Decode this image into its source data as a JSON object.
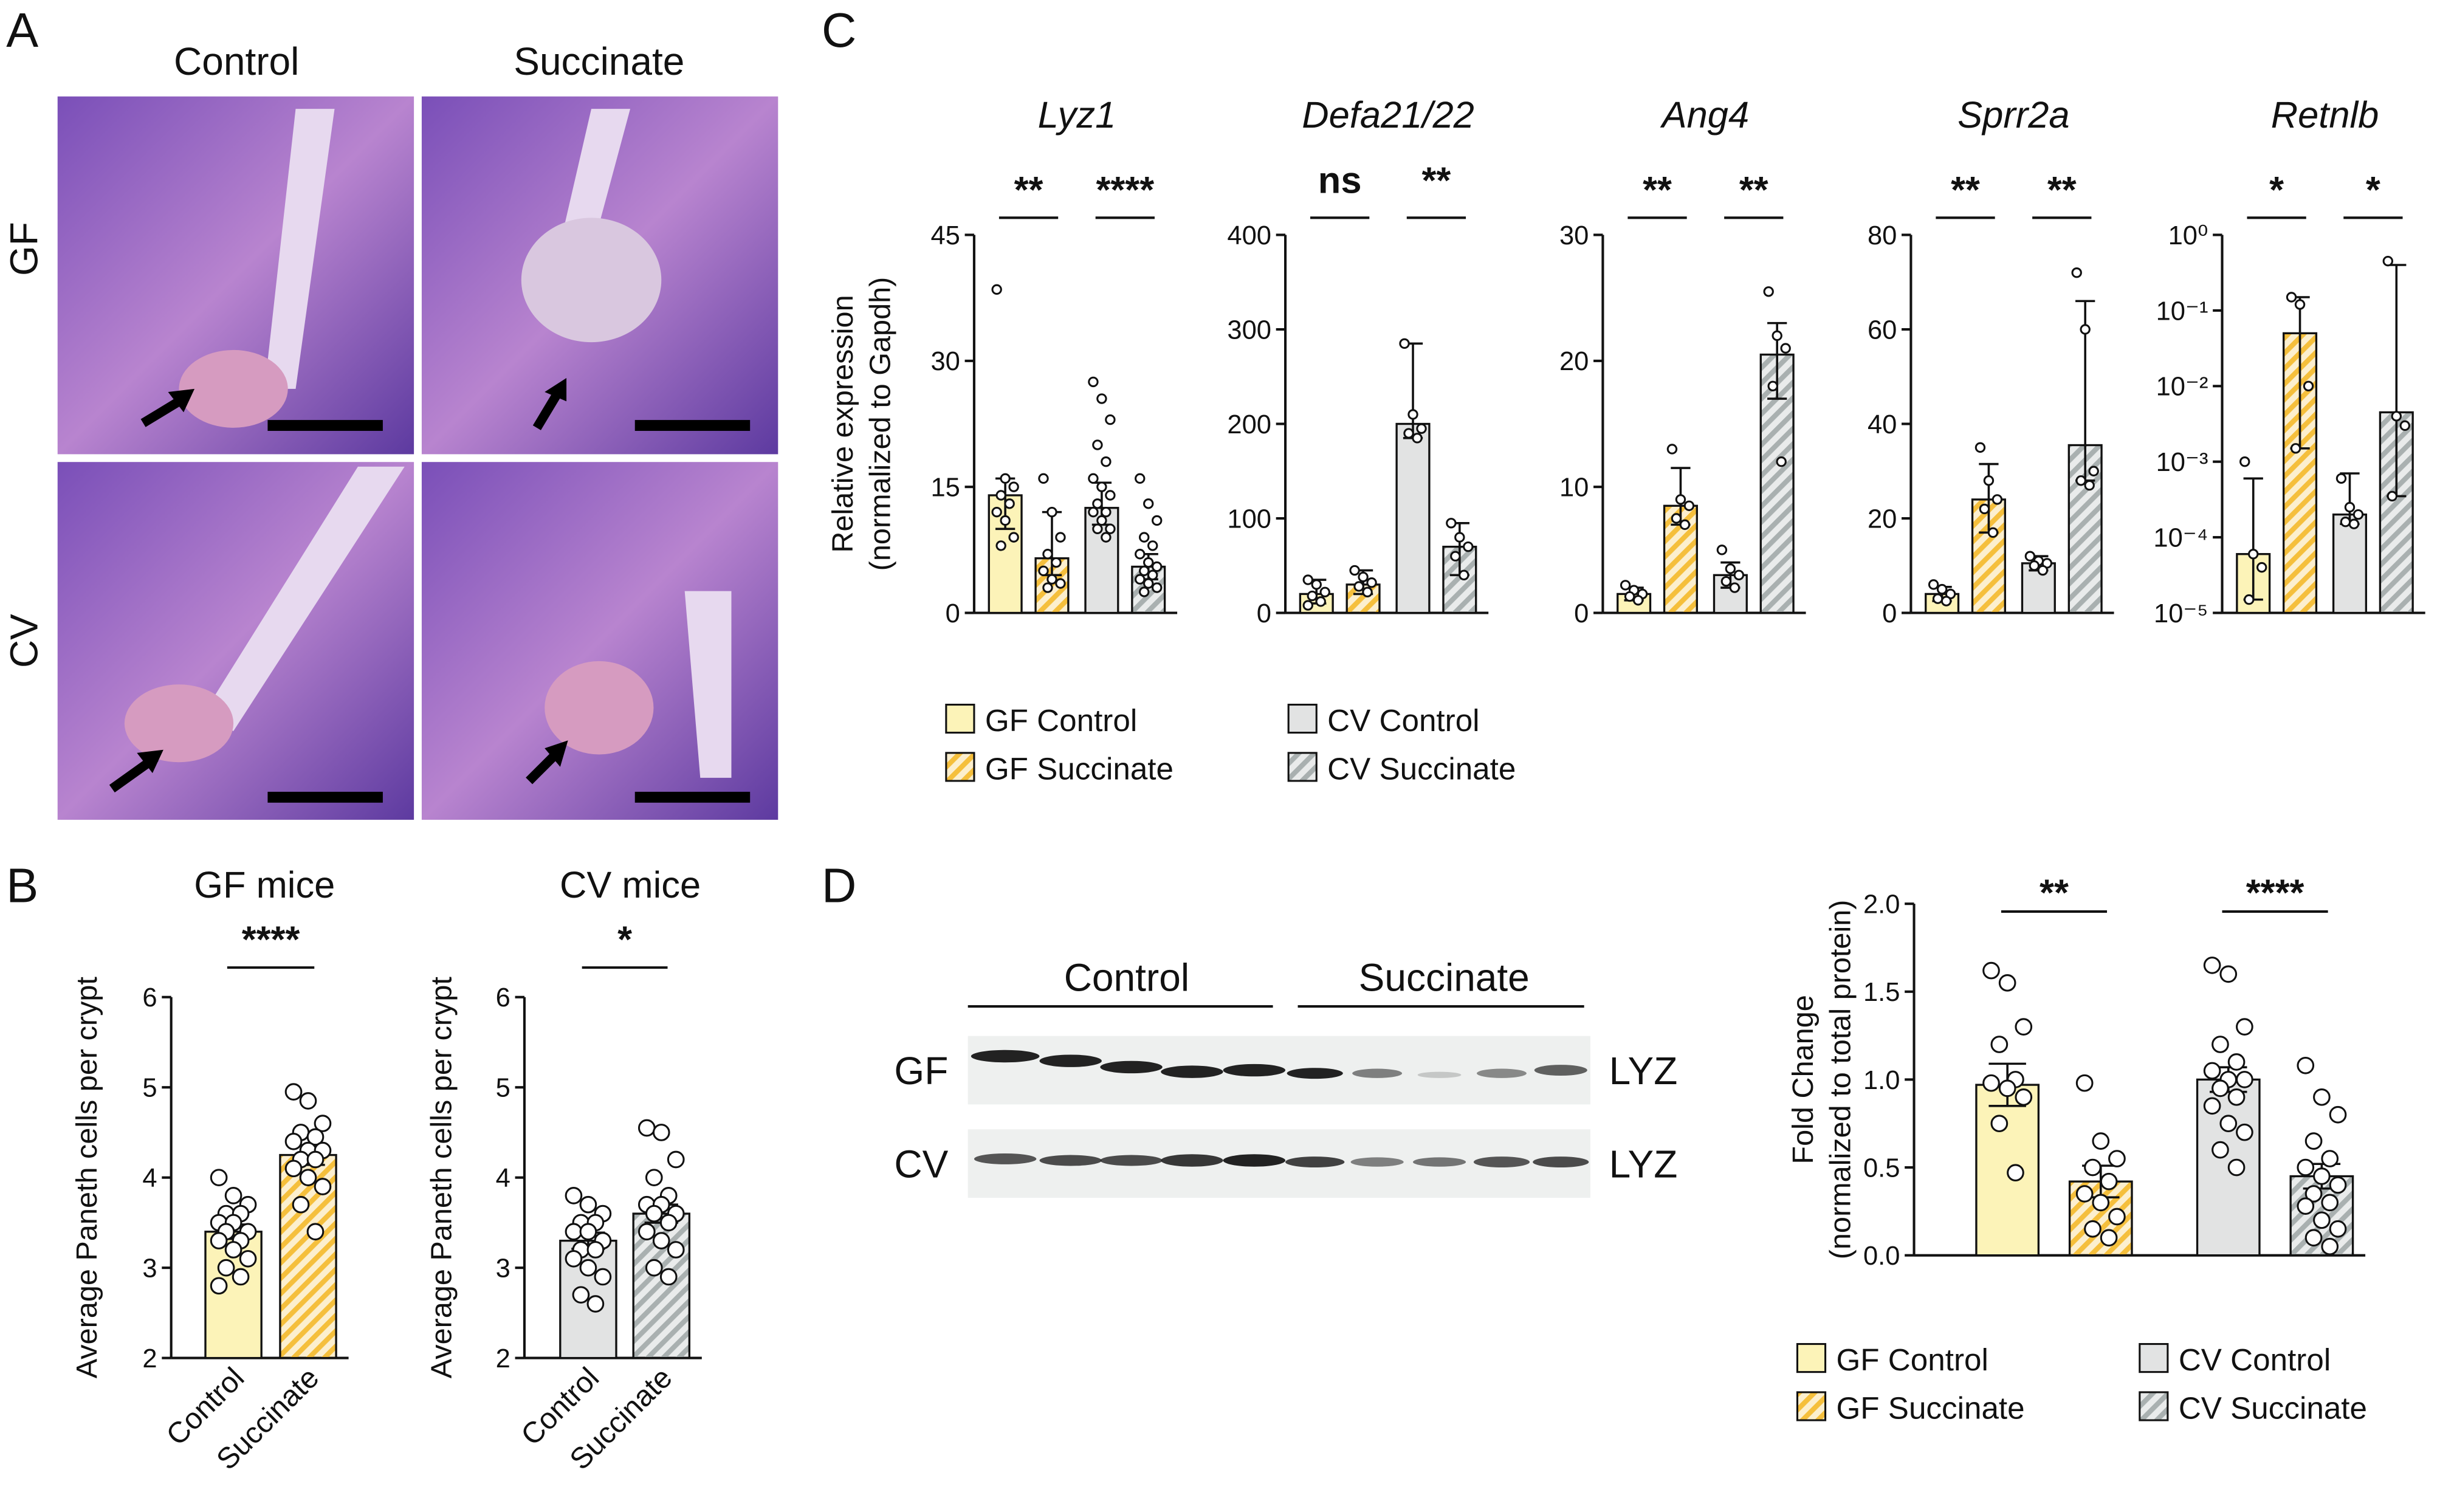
{
  "panel_labels": [
    "A",
    "B",
    "C",
    "D"
  ],
  "histology": {
    "columns": [
      "Control",
      "Succinate"
    ],
    "rows": [
      "GF",
      "CV"
    ]
  },
  "blot": {
    "groups": [
      "Control",
      "Succinate"
    ],
    "rows": [
      "GF",
      "CV"
    ],
    "band_labels": [
      "LYZ",
      "LYZ"
    ]
  },
  "chart_data": [
    {
      "type": "bar",
      "title": "GF mice",
      "ylabel": [
        "Average Paneth cells per crypt"
      ],
      "ylim": [
        2,
        6
      ],
      "yticks": [
        2,
        3,
        4,
        5,
        6
      ],
      "annotations": [
        "****"
      ],
      "series": [
        {
          "name": "Control",
          "color": "#fcf3b8",
          "hatched": false,
          "values": [
            3.4
          ],
          "errors": [
            0.08
          ],
          "points": [
            4.0,
            3.8,
            3.7,
            3.6,
            3.6,
            3.5,
            3.5,
            3.4,
            3.4,
            3.3,
            3.3,
            3.2,
            3.1,
            3.0,
            2.9,
            2.8
          ]
        },
        {
          "name": "Succinate",
          "color": "#f5bf3c",
          "hatched": true,
          "values": [
            4.25
          ],
          "errors": [
            0.11
          ],
          "points": [
            4.95,
            4.85,
            4.6,
            4.5,
            4.45,
            4.4,
            4.3,
            4.3,
            4.2,
            4.2,
            4.1,
            4.0,
            3.9,
            3.7,
            3.4
          ]
        }
      ]
    },
    {
      "type": "bar",
      "title": "CV mice",
      "ylabel": [
        "Average Paneth cells per crypt"
      ],
      "ylim": [
        2,
        6
      ],
      "yticks": [
        2,
        3,
        4,
        5,
        6
      ],
      "annotations": [
        "*"
      ],
      "series": [
        {
          "name": "Control",
          "color": "#e2e3e3",
          "hatched": false,
          "values": [
            3.3
          ],
          "errors": [
            0.09
          ],
          "points": [
            3.8,
            3.7,
            3.6,
            3.5,
            3.5,
            3.4,
            3.4,
            3.3,
            3.2,
            3.2,
            3.1,
            3.0,
            2.9,
            2.7,
            2.6
          ]
        },
        {
          "name": "Succinate",
          "color": "#a9b0b0",
          "hatched": true,
          "values": [
            3.6
          ],
          "errors": [
            0.1
          ],
          "points": [
            4.55,
            4.5,
            4.2,
            4.0,
            3.8,
            3.7,
            3.7,
            3.6,
            3.6,
            3.5,
            3.4,
            3.3,
            3.2,
            3.0,
            2.9
          ]
        }
      ]
    },
    {
      "type": "bar",
      "title": "Lyz1",
      "ylabel": [
        "Relative expression",
        "(normalized to Gapdh)"
      ],
      "ylim": [
        0,
        45
      ],
      "yticks": [
        0,
        15,
        30,
        45
      ],
      "annotations": [
        "**",
        "****"
      ],
      "series": [
        {
          "name": "GF Control",
          "color": "#fcf3b8",
          "hatched": false,
          "values": [
            14
          ],
          "error_range": [
            [
              10,
              16
            ]
          ],
          "points": [
            38.5,
            16,
            15,
            14,
            13,
            12,
            11,
            9,
            8
          ]
        },
        {
          "name": "GF Succinate",
          "color": "#f5bf3c",
          "hatched": true,
          "values": [
            6.5
          ],
          "error_range": [
            [
              4.5,
              12
            ]
          ],
          "points": [
            16,
            12,
            9,
            7,
            6,
            5,
            4,
            3.5,
            3
          ]
        },
        {
          "name": "CV Control",
          "color": "#e2e3e3",
          "hatched": false,
          "values": [
            12.5
          ],
          "error_range": [
            [
              10.5,
              15.5
            ]
          ],
          "points": [
            27.5,
            25.5,
            23,
            20,
            18,
            16,
            15,
            14,
            13,
            12,
            12,
            11,
            10,
            10,
            9
          ]
        },
        {
          "name": "CV Succinate",
          "color": "#a9b0b0",
          "hatched": true,
          "values": [
            5.5
          ],
          "error_range": [
            [
              4,
              7
            ]
          ],
          "points": [
            16,
            13,
            11,
            9,
            8,
            7,
            6,
            5.5,
            5,
            4.5,
            4,
            3.5,
            3,
            2.5
          ]
        }
      ]
    },
    {
      "type": "bar",
      "title": "Defa21/22",
      "ylim": [
        0,
        400
      ],
      "yticks": [
        0,
        100,
        200,
        300,
        400
      ],
      "annotations": [
        "ns",
        "**"
      ],
      "series": [
        {
          "color": "#fcf3b8",
          "hatched": false,
          "values": [
            20
          ],
          "error_range": [
            [
              10,
              35
            ]
          ],
          "points": [
            35,
            30,
            22,
            18,
            12,
            8
          ]
        },
        {
          "color": "#f5bf3c",
          "hatched": true,
          "values": [
            30
          ],
          "error_range": [
            [
              20,
              45
            ]
          ],
          "points": [
            45,
            38,
            32,
            28,
            22
          ]
        },
        {
          "color": "#e2e3e3",
          "hatched": false,
          "values": [
            200
          ],
          "error_range": [
            [
              185,
              285
            ]
          ],
          "points": [
            285,
            210,
            195,
            190,
            185
          ]
        },
        {
          "color": "#a9b0b0",
          "hatched": true,
          "values": [
            70
          ],
          "error_range": [
            [
              40,
              95
            ]
          ],
          "points": [
            95,
            80,
            70,
            60,
            40
          ]
        }
      ]
    },
    {
      "type": "bar",
      "title": "Ang4",
      "ylim": [
        0,
        30
      ],
      "yticks": [
        0,
        10,
        20,
        30
      ],
      "annotations": [
        "**",
        "**"
      ],
      "series": [
        {
          "color": "#fcf3b8",
          "hatched": false,
          "values": [
            1.5
          ],
          "error_range": [
            [
              1,
              2
            ]
          ],
          "points": [
            2.2,
            1.8,
            1.5,
            1.3,
            1
          ]
        },
        {
          "color": "#f5bf3c",
          "hatched": true,
          "values": [
            8.5
          ],
          "error_range": [
            [
              7,
              11.5
            ]
          ],
          "points": [
            13,
            9,
            8.5,
            7.5,
            7
          ]
        },
        {
          "color": "#e2e3e3",
          "hatched": false,
          "values": [
            3
          ],
          "error_range": [
            [
              2,
              4
            ]
          ],
          "points": [
            5,
            3.5,
            3,
            2.5,
            2
          ]
        },
        {
          "color": "#a9b0b0",
          "hatched": true,
          "values": [
            20.5
          ],
          "error_range": [
            [
              17,
              23
            ]
          ],
          "points": [
            25.5,
            22,
            21,
            18,
            12
          ]
        }
      ]
    },
    {
      "type": "bar",
      "title": "Sprr2a",
      "ylim": [
        0,
        80
      ],
      "yticks": [
        0,
        20,
        40,
        60,
        80
      ],
      "annotations": [
        "**",
        "**"
      ],
      "series": [
        {
          "color": "#fcf3b8",
          "hatched": false,
          "values": [
            4
          ],
          "error_range": [
            [
              2.5,
              5.5
            ]
          ],
          "points": [
            6,
            5,
            4,
            3,
            2.5
          ]
        },
        {
          "color": "#f5bf3c",
          "hatched": true,
          "values": [
            24
          ],
          "error_range": [
            [
              17,
              31.5
            ]
          ],
          "points": [
            35,
            28,
            24,
            22,
            17
          ]
        },
        {
          "color": "#e2e3e3",
          "hatched": false,
          "values": [
            10.5
          ],
          "error_range": [
            [
              9,
              12
            ]
          ],
          "points": [
            12,
            11,
            10.5,
            10,
            9
          ]
        },
        {
          "color": "#a9b0b0",
          "hatched": true,
          "values": [
            35.5
          ],
          "error_range": [
            [
              28,
              66
            ]
          ],
          "points": [
            72,
            60,
            30,
            28,
            27
          ]
        }
      ]
    },
    {
      "type": "bar",
      "title": "Retnlb",
      "yscale": "log",
      "ylim": [
        1e-05,
        1
      ],
      "yticks": [
        {
          "value": 1e-05,
          "label": "10⁻⁵"
        },
        {
          "value": 0.0001,
          "label": "10⁻⁴"
        },
        {
          "value": 0.001,
          "label": "10⁻³"
        },
        {
          "value": 0.01,
          "label": "10⁻²"
        },
        {
          "value": 0.1,
          "label": "10⁻¹"
        },
        {
          "value": 1,
          "label": "10⁰"
        }
      ],
      "annotations": [
        "*",
        "*"
      ],
      "series": [
        {
          "color": "#fcf3b8",
          "hatched": false,
          "values": [
            6e-05
          ],
          "error_range": [
            [
              1.5e-05,
              0.0006
            ]
          ],
          "points": [
            0.001,
            6e-05,
            4e-05,
            1.5e-05
          ]
        },
        {
          "color": "#f5bf3c",
          "hatched": true,
          "values": [
            0.05
          ],
          "error_range": [
            [
              0.0015,
              0.15
            ]
          ],
          "points": [
            0.15,
            0.12,
            0.01,
            0.0015
          ]
        },
        {
          "color": "#e2e3e3",
          "hatched": false,
          "values": [
            0.0002
          ],
          "error_range": [
            [
              0.00015,
              0.0007
            ]
          ],
          "points": [
            0.0006,
            0.00025,
            0.0002,
            0.00016,
            0.00015
          ]
        },
        {
          "color": "#a9b0b0",
          "hatched": true,
          "values": [
            0.0045
          ],
          "error_range": [
            [
              0.00035,
              0.4
            ]
          ],
          "points": [
            0.45,
            0.004,
            0.003,
            0.00035
          ]
        }
      ]
    },
    {
      "type": "bar",
      "ylabel": [
        "Fold Change",
        "(normalized to total protein)"
      ],
      "ylim": [
        0,
        2
      ],
      "yticks": [
        {
          "value": 0,
          "label": "0.0"
        },
        {
          "value": 0.5,
          "label": "0.5"
        },
        {
          "value": 1,
          "label": "1.0"
        },
        {
          "value": 1.5,
          "label": "1.5"
        },
        {
          "value": 2,
          "label": "2.0"
        }
      ],
      "annotations": [
        "**",
        "****"
      ],
      "series": [
        {
          "name": "GF Control",
          "color": "#fcf3b8",
          "hatched": false,
          "values": [
            0.97
          ],
          "errors": [
            0.12
          ],
          "points": [
            1.62,
            1.55,
            1.3,
            1.2,
            1.0,
            0.98,
            0.95,
            0.9,
            0.75,
            0.47
          ]
        },
        {
          "name": "GF Succinate",
          "color": "#f5bf3c",
          "hatched": true,
          "values": [
            0.42
          ],
          "errors": [
            0.09
          ],
          "points": [
            0.98,
            0.65,
            0.55,
            0.5,
            0.42,
            0.35,
            0.3,
            0.22,
            0.15,
            0.1
          ]
        },
        {
          "name": "CV Control",
          "color": "#e2e3e3",
          "hatched": false,
          "values": [
            1.0
          ],
          "errors": [
            0.07
          ],
          "points": [
            1.65,
            1.6,
            1.3,
            1.2,
            1.1,
            1.05,
            1.0,
            1.0,
            0.95,
            0.9,
            0.85,
            0.75,
            0.7,
            0.6,
            0.5
          ]
        },
        {
          "name": "CV Succinate",
          "color": "#a9b0b0",
          "hatched": true,
          "values": [
            0.45
          ],
          "errors": [
            0.07
          ],
          "points": [
            1.08,
            0.9,
            0.8,
            0.65,
            0.55,
            0.5,
            0.45,
            0.4,
            0.35,
            0.3,
            0.28,
            0.2,
            0.15,
            0.1,
            0.05
          ]
        }
      ]
    }
  ]
}
